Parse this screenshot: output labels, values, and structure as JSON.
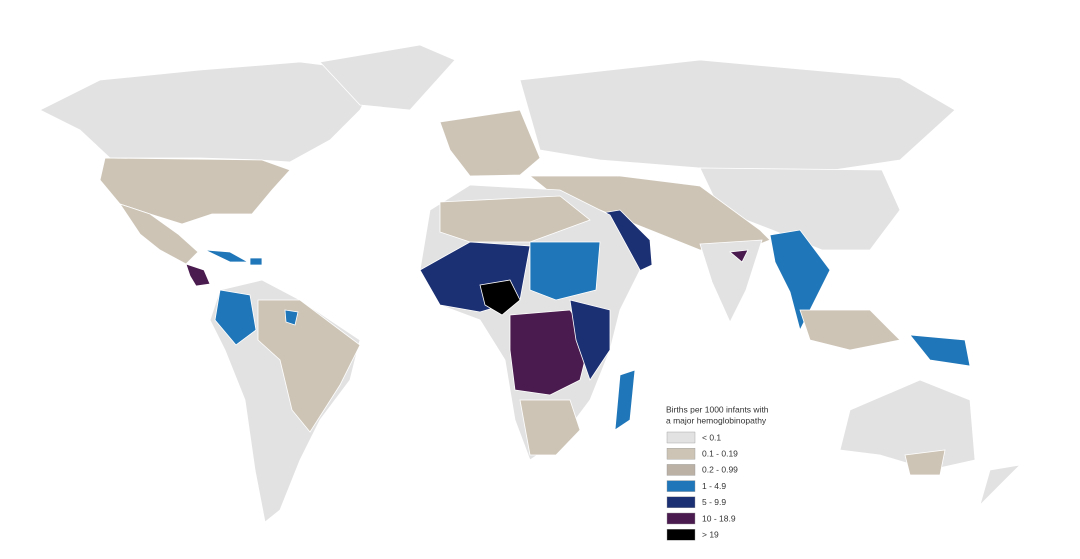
{
  "legend": {
    "title": [
      "Births per 1000 infants with",
      "a major hemoglobinopathy"
    ],
    "items": [
      {
        "label": "< 0.1",
        "color": "#e2e2e2"
      },
      {
        "label": "0.1  -  0.19",
        "color": "#cdc4b6"
      },
      {
        "label": "0.2  -  0.99",
        "color": "#bbb1a4"
      },
      {
        "label": "1  -  4.9",
        "color": "#1f76b8"
      },
      {
        "label": "5  -  9.9",
        "color": "#1b2f73"
      },
      {
        "label": "10  -  18.9",
        "color": "#4a1b4e"
      },
      {
        "label": "> 19",
        "color": "#000000"
      }
    ]
  }
}
